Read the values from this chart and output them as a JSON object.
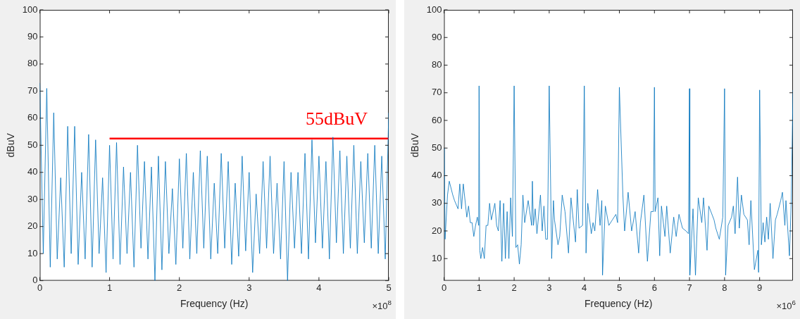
{
  "chart_data": [
    {
      "type": "line",
      "xlabel": "Frequency (Hz)",
      "ylabel": "dBuV",
      "grid": false,
      "xlim": [
        0,
        5
      ],
      "ylim": [
        0,
        100
      ],
      "xticks": [
        0,
        1,
        2,
        3,
        4,
        5
      ],
      "yticks": [
        0,
        10,
        20,
        30,
        40,
        50,
        60,
        70,
        80,
        90,
        100
      ],
      "annotations": [
        "×10$^{8}$",
        "55dBuV"
      ],
      "series": [
        {
          "color": "#0072bd",
          "x": [
            0,
            0.05,
            0.1,
            0.15,
            0.2,
            0.25,
            0.3,
            0.35,
            0.4,
            0.45,
            0.5,
            0.55,
            0.6,
            0.65,
            0.7,
            0.75,
            0.8,
            0.85,
            0.9,
            0.95,
            1,
            1.05,
            1.1,
            1.15,
            1.2,
            1.25,
            1.3,
            1.35,
            1.4,
            1.45,
            1.5,
            1.55,
            1.6,
            1.65,
            1.7,
            1.75,
            1.8,
            1.85,
            1.9,
            1.95,
            2,
            2.05,
            2.1,
            2.15,
            2.2,
            2.25,
            2.3,
            2.35,
            2.4,
            2.45,
            2.5,
            2.55,
            2.6,
            2.65,
            2.7,
            2.75,
            2.8,
            2.85,
            2.9,
            2.95,
            3,
            3.05,
            3.1,
            3.15,
            3.2,
            3.25,
            3.3,
            3.35,
            3.4,
            3.45,
            3.5,
            3.55,
            3.6,
            3.65,
            3.7,
            3.75,
            3.8,
            3.85,
            3.9,
            3.95,
            4,
            4.05,
            4.1,
            4.15,
            4.2,
            4.25,
            4.3,
            4.35,
            4.4,
            4.45,
            4.5,
            4.55,
            4.6,
            4.65,
            4.7,
            4.75,
            4.8,
            4.85,
            4.9,
            4.95,
            5
          ],
          "values": [
            73,
            10,
            71,
            5,
            62,
            8,
            38,
            5,
            57,
            10,
            57,
            6,
            40,
            8,
            54,
            5,
            52,
            10,
            38,
            3,
            50,
            8,
            51,
            6,
            42,
            10,
            40,
            5,
            50,
            12,
            44,
            8,
            42,
            0,
            46,
            4,
            44,
            10,
            34,
            6,
            45,
            12,
            47,
            8,
            40,
            10,
            48,
            12,
            46,
            8,
            36,
            10,
            47,
            12,
            44,
            6,
            36,
            9,
            46,
            11,
            40,
            3,
            32,
            10,
            44,
            12,
            46,
            10,
            36,
            8,
            44,
            0,
            40,
            12,
            40,
            10,
            47,
            8,
            52,
            14,
            46,
            12,
            44,
            8,
            53,
            14,
            48,
            10,
            46,
            12,
            50,
            10,
            44,
            14,
            47,
            12,
            50,
            10,
            46,
            8,
            62
          ]
        },
        {
          "type": "line",
          "color": "#ff0000",
          "x": [
            1,
            5
          ],
          "values": [
            52.5,
            52.5
          ]
        }
      ]
    },
    {
      "type": "line",
      "xlabel": "Frequency (Hz)",
      "ylabel": "dBuV",
      "grid": false,
      "xlim": [
        0,
        9.95
      ],
      "ylim": [
        2,
        100
      ],
      "xticks": [
        0,
        1,
        2,
        3,
        4,
        5,
        6,
        7,
        8,
        9
      ],
      "yticks": [
        10,
        20,
        30,
        40,
        50,
        60,
        70,
        80,
        90,
        100
      ],
      "annotations": [
        "×10$^{6}$"
      ],
      "series": [
        {
          "color": "#0072bd",
          "x": [
            0.01,
            0.03,
            0.1,
            0.15,
            0.25,
            0.3,
            0.4,
            0.45,
            0.5,
            0.55,
            0.65,
            0.7,
            0.75,
            0.8,
            0.85,
            0.9,
            0.95,
            0.99,
            1.0,
            1.02,
            1.05,
            1.1,
            1.15,
            1.2,
            1.25,
            1.3,
            1.35,
            1.45,
            1.5,
            1.55,
            1.6,
            1.65,
            1.7,
            1.75,
            1.8,
            1.85,
            1.9,
            1.95,
            2.0,
            2.05,
            2.1,
            2.15,
            2.2,
            2.25,
            2.3,
            2.4,
            2.5,
            2.52,
            2.55,
            2.6,
            2.65,
            2.75,
            2.8,
            2.85,
            2.9,
            2.95,
            3.0,
            3.07,
            3.12,
            3.15,
            3.25,
            3.3,
            3.37,
            3.45,
            3.55,
            3.62,
            3.7,
            3.75,
            3.8,
            3.85,
            3.95,
            4.0,
            4.05,
            4.1,
            4.2,
            4.25,
            4.3,
            4.38,
            4.45,
            4.5,
            4.52,
            4.6,
            4.7,
            4.8,
            4.9,
            4.95,
            5.0,
            5.1,
            5.15,
            5.25,
            5.35,
            5.45,
            5.55,
            5.6,
            5.7,
            5.8,
            5.9,
            5.97,
            6.0,
            6.02,
            6.1,
            6.15,
            6.2,
            6.3,
            6.35,
            6.45,
            6.55,
            6.62,
            6.7,
            6.8,
            6.9,
            6.97,
            7.0,
            7.01,
            7.1,
            7.17,
            7.25,
            7.35,
            7.4,
            7.5,
            7.55,
            7.7,
            7.75,
            7.85,
            7.95,
            8.0,
            8.03,
            8.1,
            8.2,
            8.25,
            8.3,
            8.37,
            8.42,
            8.48,
            8.55,
            8.65,
            8.7,
            8.75,
            8.85,
            8.95,
            8.97,
            9.0,
            9.05,
            9.1,
            9.15,
            9.2,
            9.25,
            9.3,
            9.38,
            9.45,
            9.5,
            9.6,
            9.65,
            9.72,
            9.75,
            9.85,
            9.9,
            9.95
          ],
          "values": [
            50,
            17,
            33,
            38,
            33,
            31,
            28,
            37,
            28,
            37,
            25,
            29,
            23,
            23,
            18,
            22,
            25,
            22,
            72.5,
            13,
            10,
            14,
            10,
            22,
            22,
            30,
            24,
            30,
            22,
            20,
            31,
            9,
            30,
            10,
            27,
            10,
            32,
            18,
            72.5,
            14,
            15,
            8,
            15,
            33,
            23,
            31,
            22,
            38,
            22,
            28,
            19,
            33,
            20,
            29,
            17,
            17,
            72.5,
            10,
            31,
            24,
            15,
            18,
            33,
            27,
            12,
            32,
            22,
            16,
            35,
            21,
            22,
            72.5,
            12,
            30,
            19,
            23,
            20,
            35,
            22,
            31,
            4,
            29,
            22,
            24,
            26,
            23,
            72,
            33,
            20,
            34,
            20,
            27,
            12,
            23,
            33,
            9,
            27,
            27,
            72,
            27,
            32,
            11,
            29,
            18,
            29,
            12,
            25,
            18,
            26,
            21,
            20,
            19,
            71.5,
            4,
            28,
            4,
            32,
            23,
            32,
            13,
            29,
            24,
            21,
            17,
            25,
            71.5,
            4,
            22,
            25,
            29,
            19,
            39.5,
            21,
            33,
            26,
            24,
            15,
            31,
            6,
            13,
            5,
            71,
            15,
            23,
            16,
            25,
            17,
            30,
            10,
            24,
            26,
            31,
            34,
            22,
            31,
            11,
            30,
            71
          ]
        }
      ]
    }
  ]
}
